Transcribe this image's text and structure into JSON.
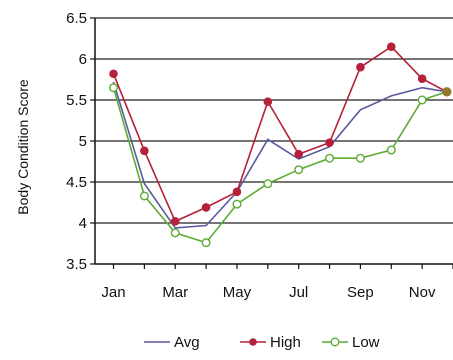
{
  "chart_data": {
    "type": "line",
    "title": "",
    "xlabel": "",
    "ylabel": "Body Condition Score",
    "ylim": [
      3.5,
      6.5
    ],
    "y_ticks": [
      "3.5",
      "4",
      "4.5",
      "5",
      "5.5",
      "6",
      "6.5"
    ],
    "y_tick_values": [
      3.5,
      4,
      4.5,
      5,
      5.5,
      6,
      6.5
    ],
    "x_tick_labels": [
      "Jan",
      "Mar",
      "May",
      "Jul",
      "Sep",
      "Nov"
    ],
    "x_tick_positions": [
      1,
      3,
      5,
      7,
      9,
      11
    ],
    "xlim": [
      0.4,
      12
    ],
    "grid": "horizontal",
    "legend_position": "bottom",
    "series": [
      {
        "name": "Avg",
        "color": "#5a5a9e",
        "marker": "none",
        "x": [
          1,
          2,
          3,
          4,
          5,
          6,
          7,
          8,
          9,
          10,
          11,
          11.8
        ],
        "values": [
          5.72,
          4.48,
          3.94,
          3.97,
          4.38,
          5.02,
          4.78,
          4.93,
          5.38,
          5.55,
          5.65,
          5.6
        ]
      },
      {
        "name": "High",
        "color": "#b5213a",
        "marker": "filled",
        "x": [
          1,
          2,
          3,
          4,
          5,
          6,
          7,
          8,
          9,
          10,
          11,
          11.8
        ],
        "values": [
          5.82,
          4.88,
          4.02,
          4.19,
          4.38,
          5.48,
          4.84,
          4.98,
          5.9,
          6.15,
          5.76,
          5.6
        ]
      },
      {
        "name": "Low",
        "color": "#5cab32",
        "marker": "open",
        "x": [
          1,
          2,
          3,
          4,
          5,
          6,
          7,
          8,
          9,
          10,
          11,
          11.8
        ],
        "values": [
          5.65,
          4.33,
          3.88,
          3.76,
          4.23,
          4.48,
          4.65,
          4.79,
          4.79,
          4.89,
          5.5,
          5.6
        ]
      }
    ],
    "endpoint_marker": {
      "x": 11.8,
      "value": 5.6,
      "color": "#8f7a2e"
    }
  }
}
